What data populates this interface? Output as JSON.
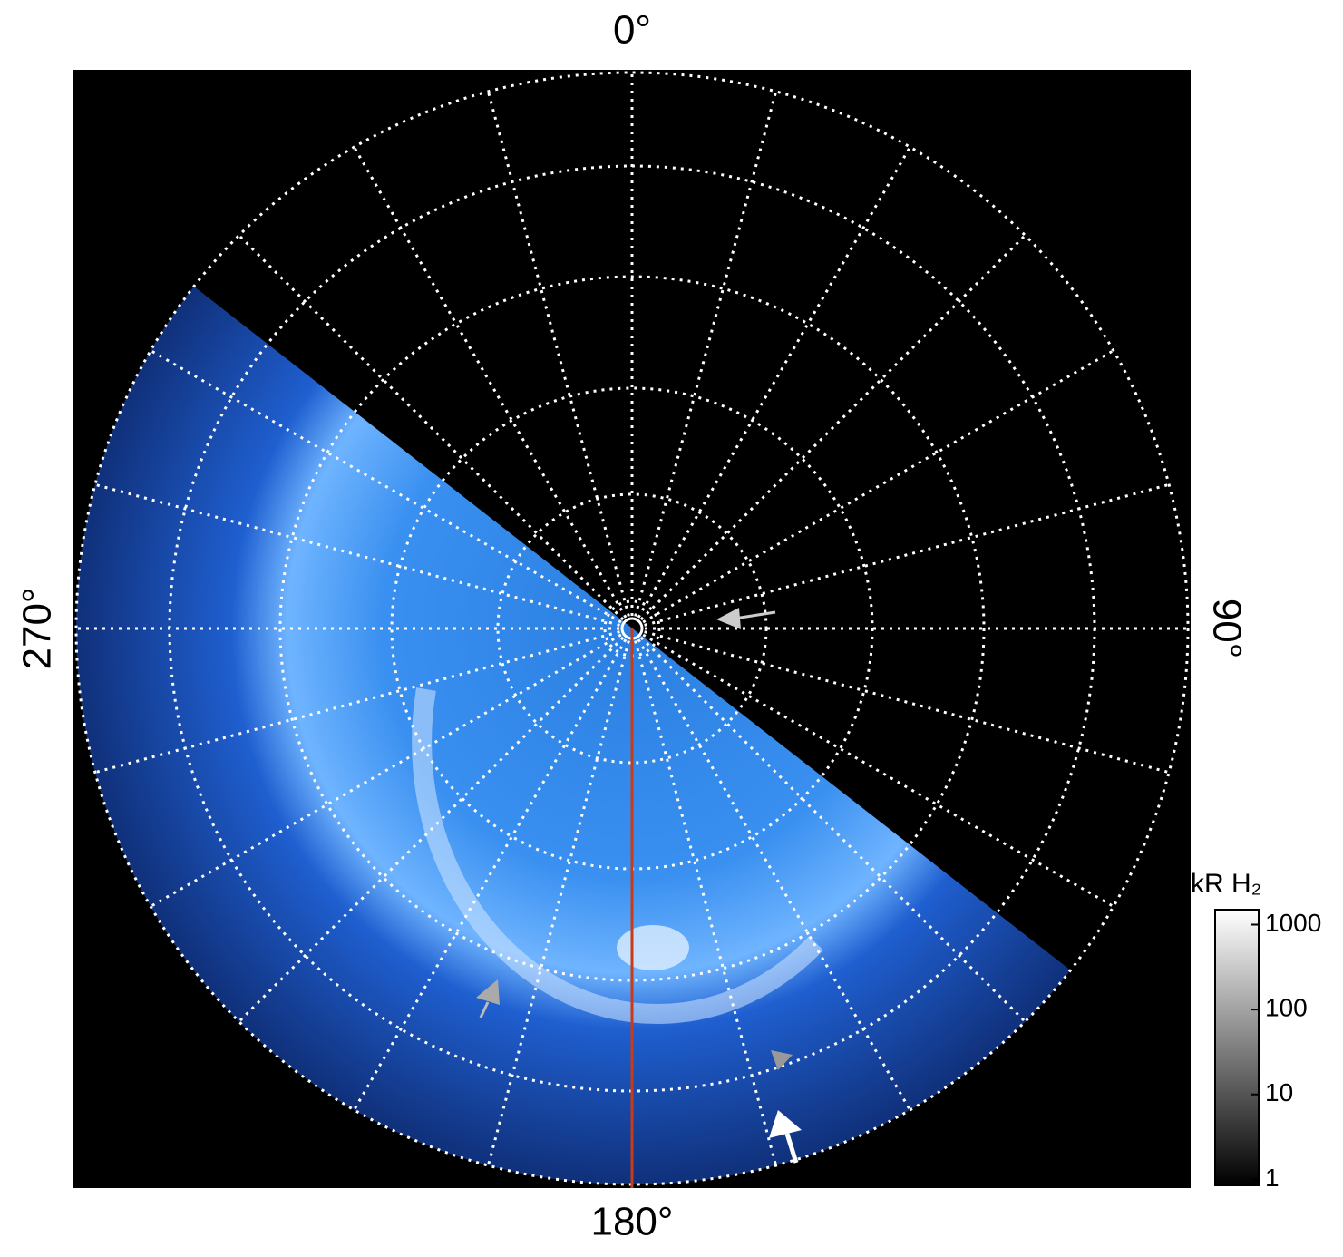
{
  "chart_data": {
    "type": "polar_map",
    "angle_ticks": [
      {
        "value": 0,
        "label": "0°"
      },
      {
        "value": 90,
        "label": "90°"
      },
      {
        "value": 180,
        "label": "180°"
      },
      {
        "value": 270,
        "label": "270°"
      }
    ],
    "colorbar": {
      "label": "kR H₂",
      "log": true,
      "lim": [
        0.85,
        1500
      ],
      "ticks": [
        1,
        10,
        100,
        1000
      ]
    }
  }
}
